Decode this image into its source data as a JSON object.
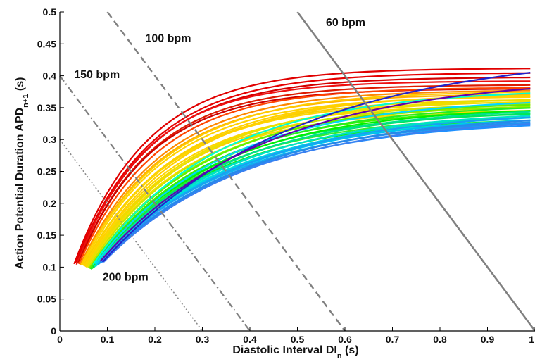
{
  "chart_data": {
    "type": "line",
    "xlabel": "Diastolic Interval DI",
    "xlabel_sub": "n",
    "xlabel_unit": " (s)",
    "ylabel": "Action Potential Duration APD",
    "ylabel_sub": "n+1",
    "ylabel_unit": " (s)",
    "xlim": [
      0,
      1
    ],
    "ylim": [
      0,
      0.5
    ],
    "x_ticks": [
      0,
      0.1,
      0.2,
      0.3,
      0.4,
      0.5,
      0.6,
      0.7,
      0.8,
      0.9,
      1
    ],
    "x_tick_labels": [
      "0",
      "0.1",
      "0.2",
      "0.3",
      "0.4",
      "0.5",
      "0.6",
      "0.7",
      "0.8",
      "0.9",
      "1"
    ],
    "y_ticks": [
      0,
      0.05,
      0.1,
      0.15,
      0.2,
      0.25,
      0.3,
      0.35,
      0.4,
      0.45,
      0.5
    ],
    "y_tick_labels": [
      "0",
      "0.05",
      "0.1",
      "0.15",
      "0.2",
      "0.25",
      "0.3",
      "0.35",
      "0.4",
      "0.45",
      "0.5"
    ],
    "grid": false,
    "legend": "none",
    "restitution_curves": [
      {
        "color": "#e00000",
        "x0": 0.03,
        "y0": 0.105,
        "ymax": 0.412,
        "tau": 0.155
      },
      {
        "color": "#e60000",
        "x0": 0.033,
        "y0": 0.107,
        "ymax": 0.405,
        "tau": 0.16
      },
      {
        "color": "#d40000",
        "x0": 0.036,
        "y0": 0.108,
        "ymax": 0.398,
        "tau": 0.158
      },
      {
        "color": "#ee1010",
        "x0": 0.035,
        "y0": 0.104,
        "ymax": 0.392,
        "tau": 0.15
      },
      {
        "color": "#dd1a00",
        "x0": 0.038,
        "y0": 0.106,
        "ymax": 0.386,
        "tau": 0.155
      },
      {
        "color": "#cc0000",
        "x0": 0.04,
        "y0": 0.108,
        "ymax": 0.38,
        "tau": 0.152
      },
      {
        "color": "#ff4400",
        "x0": 0.04,
        "y0": 0.105,
        "ymax": 0.382,
        "tau": 0.165
      },
      {
        "color": "#ff8800",
        "x0": 0.043,
        "y0": 0.104,
        "ymax": 0.378,
        "tau": 0.175
      },
      {
        "color": "#ffb000",
        "x0": 0.045,
        "y0": 0.103,
        "ymax": 0.372,
        "tau": 0.175
      },
      {
        "color": "#ffcc00",
        "x0": 0.045,
        "y0": 0.104,
        "ymax": 0.376,
        "tau": 0.185
      },
      {
        "color": "#ffd200",
        "x0": 0.048,
        "y0": 0.103,
        "ymax": 0.368,
        "tau": 0.18
      },
      {
        "color": "#ffd000",
        "x0": 0.05,
        "y0": 0.103,
        "ymax": 0.37,
        "tau": 0.195
      },
      {
        "color": "#f5d000",
        "x0": 0.05,
        "y0": 0.102,
        "ymax": 0.364,
        "tau": 0.19
      },
      {
        "color": "#ffd400",
        "x0": 0.052,
        "y0": 0.102,
        "ymax": 0.36,
        "tau": 0.185
      },
      {
        "color": "#ffcf00",
        "x0": 0.053,
        "y0": 0.101,
        "ymax": 0.372,
        "tau": 0.205
      },
      {
        "color": "#ffd600",
        "x0": 0.055,
        "y0": 0.101,
        "ymax": 0.356,
        "tau": 0.195
      },
      {
        "color": "#f0dc00",
        "x0": 0.055,
        "y0": 0.1,
        "ymax": 0.362,
        "tau": 0.21
      },
      {
        "color": "#ffcc00",
        "x0": 0.058,
        "y0": 0.1,
        "ymax": 0.352,
        "tau": 0.2
      },
      {
        "color": "#e8e000",
        "x0": 0.058,
        "y0": 0.101,
        "ymax": 0.366,
        "tau": 0.22
      },
      {
        "color": "#ffd800",
        "x0": 0.06,
        "y0": 0.1,
        "ymax": 0.348,
        "tau": 0.205
      },
      {
        "color": "#c8e600",
        "x0": 0.06,
        "y0": 0.099,
        "ymax": 0.36,
        "tau": 0.225
      },
      {
        "color": "#90ee00",
        "x0": 0.062,
        "y0": 0.098,
        "ymax": 0.356,
        "tau": 0.23
      },
      {
        "color": "#60f000",
        "x0": 0.063,
        "y0": 0.098,
        "ymax": 0.36,
        "tau": 0.24
      },
      {
        "color": "#40f000",
        "x0": 0.065,
        "y0": 0.097,
        "ymax": 0.35,
        "tau": 0.235
      },
      {
        "color": "#22ee22",
        "x0": 0.065,
        "y0": 0.097,
        "ymax": 0.356,
        "tau": 0.25
      },
      {
        "color": "#00ee44",
        "x0": 0.067,
        "y0": 0.098,
        "ymax": 0.345,
        "tau": 0.24
      },
      {
        "color": "#00f000",
        "x0": 0.068,
        "y0": 0.098,
        "ymax": 0.352,
        "tau": 0.255
      },
      {
        "color": "#30ee30",
        "x0": 0.068,
        "y0": 0.099,
        "ymax": 0.34,
        "tau": 0.245
      },
      {
        "color": "#00e65c",
        "x0": 0.07,
        "y0": 0.099,
        "ymax": 0.348,
        "tau": 0.26
      },
      {
        "color": "#10ea10",
        "x0": 0.07,
        "y0": 0.1,
        "ymax": 0.336,
        "tau": 0.25
      },
      {
        "color": "#00e090",
        "x0": 0.072,
        "y0": 0.1,
        "ymax": 0.352,
        "tau": 0.27
      },
      {
        "color": "#00e6b0",
        "x0": 0.073,
        "y0": 0.101,
        "ymax": 0.342,
        "tau": 0.265
      },
      {
        "color": "#00e0c8",
        "x0": 0.075,
        "y0": 0.101,
        "ymax": 0.346,
        "tau": 0.275
      },
      {
        "color": "#00e8d0",
        "x0": 0.076,
        "y0": 0.102,
        "ymax": 0.338,
        "tau": 0.27
      },
      {
        "color": "#00d0e8",
        "x0": 0.078,
        "y0": 0.103,
        "ymax": 0.344,
        "tau": 0.285
      },
      {
        "color": "#00c0f0",
        "x0": 0.08,
        "y0": 0.104,
        "ymax": 0.34,
        "tau": 0.285
      },
      {
        "color": "#10b0f0",
        "x0": 0.08,
        "y0": 0.104,
        "ymax": 0.334,
        "tau": 0.28
      },
      {
        "color": "#1aa0f0",
        "x0": 0.082,
        "y0": 0.105,
        "ymax": 0.346,
        "tau": 0.295
      },
      {
        "color": "#2090f0",
        "x0": 0.085,
        "y0": 0.106,
        "ymax": 0.338,
        "tau": 0.295
      },
      {
        "color": "#1e90ff",
        "x0": 0.087,
        "y0": 0.107,
        "ymax": 0.332,
        "tau": 0.29
      },
      {
        "color": "#2888e8",
        "x0": 0.09,
        "y0": 0.108,
        "ymax": 0.342,
        "tau": 0.305
      },
      {
        "color": "#3a80f0",
        "x0": 0.092,
        "y0": 0.108,
        "ymax": 0.336,
        "tau": 0.3
      },
      {
        "color": "#00d8ff",
        "x0": 0.075,
        "y0": 0.105,
        "ymax": 0.366,
        "tau": 0.265
      },
      {
        "color": "#00ffd0",
        "x0": 0.07,
        "y0": 0.104,
        "ymax": 0.38,
        "tau": 0.255
      },
      {
        "color": "#2222cc",
        "x0": 0.09,
        "y0": 0.108,
        "ymax": 0.44,
        "tau": 0.4
      },
      {
        "color": "#6600aa",
        "x0": 0.085,
        "y0": 0.109,
        "ymax": 0.4,
        "tau": 0.34
      }
    ],
    "reference_lines": [
      {
        "name": "60 bpm",
        "x_intercept": 1.0,
        "style": "solid",
        "color": "#808080",
        "width": 2.6
      },
      {
        "name": "100 bpm",
        "x_intercept": 0.6,
        "style": "dashed",
        "color": "#808080",
        "width": 2.4
      },
      {
        "name": "150 bpm",
        "x_intercept": 0.4,
        "style": "dashdot",
        "color": "#808080",
        "width": 2.2
      },
      {
        "name": "200 bpm",
        "x_intercept": 0.3,
        "style": "dotted",
        "color": "#8a8a8a",
        "width": 1.6
      }
    ],
    "annotations": [
      {
        "text": "60 bpm",
        "x": 0.56,
        "y": 0.478
      },
      {
        "text": "100 bpm",
        "x": 0.18,
        "y": 0.453
      },
      {
        "text": "150 bpm",
        "x": 0.03,
        "y": 0.396
      },
      {
        "text": "200 bpm",
        "x": 0.09,
        "y": 0.079
      }
    ]
  }
}
